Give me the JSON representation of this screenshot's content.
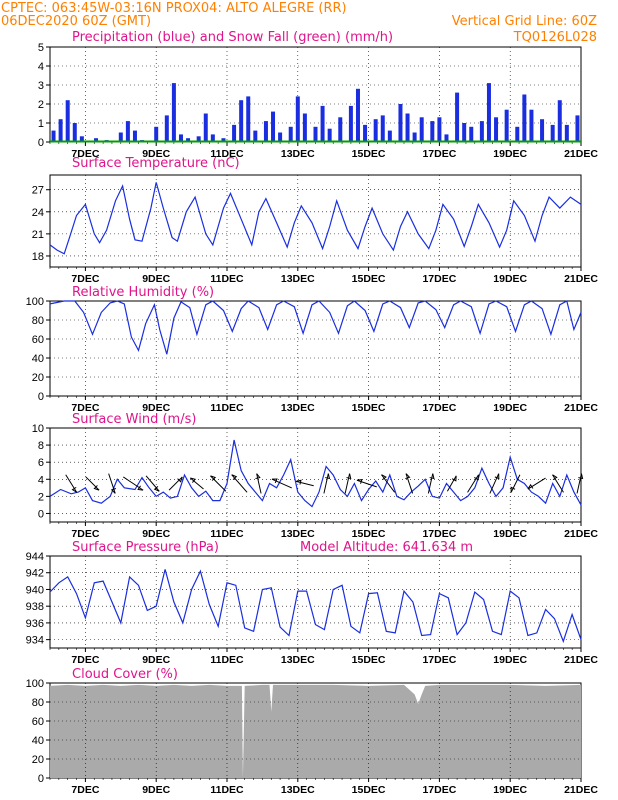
{
  "header": {
    "line1_left": "CPTEC:   063:45W-03:16N   PROX04: ALTO ALEGRE (RR)",
    "line2_left": "06DEC2020 60Z (GMT)",
    "line2_right": "Vertical Grid Line: 60Z",
    "line3_right": "TQ0126L028"
  },
  "colors": {
    "header": "#ff8000",
    "title": "#e0148c",
    "series": "#1a2ee0",
    "snow": "#00a000",
    "cloud": "#aaaaaa",
    "arrow": "#000000"
  },
  "x_axis": {
    "labels": [
      "7DEC",
      "9DEC",
      "11DEC",
      "13DEC",
      "15DEC",
      "17DEC",
      "19DEC",
      "21DEC"
    ],
    "days": [
      7,
      9,
      11,
      13,
      15,
      17,
      19,
      21
    ],
    "range_days": [
      6.0,
      21.0
    ]
  },
  "chart_data": [
    {
      "type": "bar",
      "title": "Precipitation (blue) and Snow Fall (green) (mm/h)",
      "ylim": [
        0,
        5
      ],
      "yticks": [
        "0",
        "1",
        "2",
        "3",
        "4",
        "5"
      ],
      "series": [
        {
          "name": "Precipitation",
          "color": "#1a2ee0",
          "x_days": [
            6.1,
            6.3,
            6.5,
            6.7,
            6.9,
            7.3,
            7.6,
            8.0,
            8.2,
            8.4,
            8.6,
            8.8,
            9.0,
            9.3,
            9.5,
            9.7,
            9.9,
            10.2,
            10.4,
            10.6,
            10.9,
            11.2,
            11.4,
            11.6,
            11.8,
            12.1,
            12.3,
            12.5,
            12.8,
            13.0,
            13.2,
            13.5,
            13.7,
            13.9,
            14.2,
            14.5,
            14.7,
            14.9,
            15.2,
            15.4,
            15.6,
            15.9,
            16.1,
            16.3,
            16.5,
            16.8,
            17.0,
            17.2,
            17.5,
            17.7,
            17.9,
            18.2,
            18.4,
            18.6,
            18.9,
            19.2,
            19.4,
            19.6,
            19.9,
            20.2,
            20.4,
            20.6,
            20.9
          ],
          "values": [
            0.6,
            1.2,
            2.2,
            1.0,
            0.3,
            0.2,
            0.1,
            0.5,
            1.1,
            0.6,
            0.1,
            0.0,
            0.8,
            1.4,
            3.1,
            0.4,
            0.2,
            0.3,
            1.5,
            0.4,
            0.2,
            0.9,
            2.2,
            2.4,
            0.6,
            1.1,
            1.6,
            0.5,
            0.8,
            2.4,
            1.5,
            0.8,
            1.9,
            0.7,
            1.3,
            1.9,
            2.8,
            0.9,
            1.2,
            1.4,
            0.6,
            2.0,
            1.5,
            0.5,
            1.3,
            1.1,
            1.3,
            0.4,
            2.6,
            1.0,
            0.8,
            1.1,
            3.1,
            1.3,
            1.7,
            0.8,
            2.5,
            1.7,
            1.2,
            0.9,
            2.2,
            0.9,
            1.4
          ]
        },
        {
          "name": "Snow Fall",
          "color": "#00a000",
          "values": [
            0
          ]
        }
      ]
    },
    {
      "type": "line",
      "title": "Surface Temperature (nC)",
      "ylim": [
        16.5,
        29
      ],
      "yticks": [
        "18",
        "21",
        "24",
        "27"
      ],
      "series": [
        {
          "name": "Temperature",
          "x_days": [
            6.0,
            6.2,
            6.4,
            6.55,
            6.75,
            7.0,
            7.25,
            7.4,
            7.6,
            7.85,
            8.05,
            8.25,
            8.4,
            8.6,
            8.85,
            9.0,
            9.2,
            9.45,
            9.6,
            9.85,
            10.1,
            10.4,
            10.6,
            10.9,
            11.1,
            11.4,
            11.7,
            11.9,
            12.1,
            12.4,
            12.7,
            12.9,
            13.1,
            13.4,
            13.7,
            13.9,
            14.1,
            14.4,
            14.7,
            14.9,
            15.1,
            15.4,
            15.7,
            15.9,
            16.1,
            16.4,
            16.7,
            16.9,
            17.1,
            17.4,
            17.7,
            17.9,
            18.1,
            18.4,
            18.7,
            18.9,
            19.1,
            19.4,
            19.7,
            19.9,
            20.1,
            20.4,
            20.7,
            21.0
          ],
          "values": [
            19.5,
            18.8,
            18.3,
            20.5,
            23.5,
            25.0,
            21.0,
            19.8,
            21.5,
            25.5,
            27.5,
            23.0,
            20.2,
            20.0,
            24.5,
            28.0,
            24.5,
            20.5,
            20.0,
            24.0,
            26.0,
            21.0,
            19.5,
            24.5,
            26.5,
            23.0,
            19.5,
            24.0,
            25.8,
            22.5,
            19.2,
            22.5,
            24.8,
            22.5,
            19.0,
            22.0,
            25.5,
            21.5,
            19.0,
            22.0,
            24.5,
            21.0,
            18.8,
            22.0,
            24.0,
            21.0,
            19.0,
            21.5,
            25.0,
            23.0,
            19.3,
            22.0,
            25.0,
            22.5,
            19.2,
            21.5,
            25.5,
            23.5,
            20.0,
            23.5,
            26.0,
            24.5,
            26.0,
            25.0
          ]
        }
      ]
    },
    {
      "type": "line",
      "title": "Relative Humidity (%)",
      "ylim": [
        0,
        100
      ],
      "yticks": [
        "0",
        "20",
        "40",
        "60",
        "80",
        "100"
      ],
      "series": [
        {
          "name": "Relative Humidity",
          "x_days": [
            6.0,
            6.4,
            6.7,
            6.95,
            7.2,
            7.45,
            7.7,
            7.9,
            8.1,
            8.3,
            8.5,
            8.7,
            8.95,
            9.1,
            9.3,
            9.5,
            9.7,
            9.95,
            10.15,
            10.4,
            10.6,
            10.9,
            11.15,
            11.4,
            11.6,
            11.9,
            12.15,
            12.4,
            12.6,
            12.9,
            13.15,
            13.4,
            13.6,
            13.9,
            14.15,
            14.4,
            14.6,
            14.9,
            15.15,
            15.4,
            15.6,
            15.9,
            16.15,
            16.4,
            16.6,
            16.9,
            17.15,
            17.4,
            17.6,
            17.9,
            18.15,
            18.4,
            18.6,
            18.9,
            19.15,
            19.4,
            19.6,
            19.9,
            20.15,
            20.4,
            20.6,
            20.8,
            21.0
          ],
          "values": [
            97,
            100,
            100,
            88,
            65,
            88,
            98,
            100,
            97,
            62,
            48,
            76,
            96,
            70,
            44,
            82,
            99,
            93,
            65,
            96,
            100,
            90,
            68,
            92,
            100,
            93,
            70,
            96,
            100,
            94,
            66,
            96,
            100,
            88,
            66,
            95,
            100,
            90,
            68,
            97,
            100,
            93,
            72,
            98,
            100,
            91,
            72,
            96,
            100,
            94,
            66,
            97,
            100,
            94,
            68,
            96,
            100,
            92,
            65,
            96,
            100,
            70,
            88
          ]
        }
      ]
    },
    {
      "type": "line",
      "title": "Surface Wind (m/s)",
      "ylim": [
        -1,
        10
      ],
      "yticks": [
        "0",
        "2",
        "4",
        "6",
        "8",
        "10"
      ],
      "series": [
        {
          "name": "Wind speed",
          "x_days": [
            6.0,
            6.3,
            6.6,
            6.8,
            7.0,
            7.2,
            7.45,
            7.7,
            7.9,
            8.1,
            8.4,
            8.6,
            8.8,
            9.0,
            9.2,
            9.4,
            9.6,
            9.8,
            10.0,
            10.2,
            10.4,
            10.6,
            10.8,
            11.0,
            11.2,
            11.4,
            11.6,
            11.8,
            12.0,
            12.2,
            12.4,
            12.6,
            12.8,
            13.0,
            13.2,
            13.4,
            13.6,
            13.8,
            14.0,
            14.2,
            14.4,
            14.6,
            14.8,
            15.0,
            15.2,
            15.4,
            15.6,
            15.8,
            16.0,
            16.2,
            16.4,
            16.6,
            16.8,
            17.0,
            17.2,
            17.4,
            17.6,
            17.8,
            18.0,
            18.2,
            18.4,
            18.6,
            18.8,
            19.0,
            19.2,
            19.4,
            19.6,
            19.8,
            20.0,
            20.2,
            20.4,
            20.6,
            20.8,
            21.0
          ],
          "values": [
            2.0,
            2.8,
            2.3,
            2.5,
            3.0,
            1.5,
            1.2,
            2.0,
            4.0,
            3.0,
            2.8,
            4.2,
            3.0,
            2.0,
            2.5,
            1.8,
            2.0,
            4.5,
            3.0,
            2.0,
            2.6,
            1.5,
            1.5,
            3.5,
            8.6,
            5.0,
            3.5,
            2.5,
            1.5,
            3.5,
            3.0,
            4.5,
            6.3,
            2.5,
            1.5,
            0.8,
            2.5,
            5.5,
            4.5,
            2.8,
            2.0,
            3.5,
            1.5,
            2.8,
            3.8,
            2.5,
            4.5,
            2.0,
            1.6,
            2.5,
            3.2,
            4.0,
            2.0,
            1.8,
            3.5,
            2.5,
            1.5,
            2.0,
            3.0,
            5.3,
            3.5,
            2.0,
            3.0,
            6.6,
            4.0,
            3.5,
            2.5,
            2.0,
            1.2,
            3.5,
            2.0,
            4.5,
            2.5,
            1.0
          ]
        }
      ],
      "arrows": {
        "x_days": [
          6.6,
          7.2,
          7.75,
          8.35,
          8.9,
          9.55,
          10.15,
          10.75,
          11.35,
          11.9,
          12.55,
          13.2,
          13.8,
          14.4,
          14.95,
          15.55,
          16.15,
          16.75,
          17.35,
          17.95,
          18.55,
          19.15,
          19.75,
          20.35,
          20.95
        ],
        "u": [
          0.5,
          0.6,
          0.3,
          0.9,
          0.6,
          0.6,
          -0.6,
          -0.7,
          -0.7,
          -0.2,
          -0.9,
          -0.8,
          0.2,
          0.2,
          -0.9,
          -0.6,
          -0.3,
          0.2,
          0.4,
          0.5,
          0.4,
          -0.4,
          -0.8,
          -0.5,
          0.2
        ],
        "v": [
          -0.8,
          -0.6,
          -0.9,
          -0.6,
          -0.7,
          0.6,
          0.5,
          0.7,
          0.8,
          0.9,
          0.4,
          0.2,
          0.9,
          0.9,
          0.3,
          0.8,
          0.9,
          0.9,
          0.7,
          0.8,
          0.9,
          -0.8,
          -0.5,
          0.8,
          0.9
        ]
      }
    },
    {
      "type": "line",
      "title": "Surface Pressure (hPa)",
      "annotation": "Model Altitude: 641.634 m",
      "ylim": [
        933,
        944
      ],
      "yticks": [
        "934",
        "936",
        "938",
        "940",
        "942",
        "944"
      ],
      "series": [
        {
          "name": "Surface Pressure",
          "x_days": [
            6.0,
            6.25,
            6.5,
            6.75,
            7.0,
            7.25,
            7.5,
            7.75,
            8.0,
            8.25,
            8.5,
            8.75,
            9.0,
            9.25,
            9.5,
            9.75,
            10.0,
            10.25,
            10.5,
            10.75,
            11.0,
            11.25,
            11.5,
            11.75,
            12.0,
            12.25,
            12.5,
            12.75,
            13.0,
            13.25,
            13.5,
            13.75,
            14.0,
            14.25,
            14.5,
            14.75,
            15.0,
            15.25,
            15.5,
            15.75,
            16.0,
            16.25,
            16.5,
            16.75,
            17.0,
            17.25,
            17.5,
            17.75,
            18.0,
            18.25,
            18.5,
            18.75,
            19.0,
            19.25,
            19.5,
            19.75,
            20.0,
            20.25,
            20.5,
            20.75,
            21.0
          ],
          "values": [
            939.7,
            940.8,
            941.5,
            939.5,
            936.6,
            940.8,
            941.0,
            938.5,
            936.0,
            941.5,
            940.5,
            937.5,
            938.0,
            942.4,
            938.5,
            936.0,
            940.0,
            942.2,
            938.2,
            935.6,
            940.8,
            940.5,
            935.4,
            935.0,
            940.0,
            940.2,
            935.5,
            934.5,
            939.8,
            939.8,
            935.8,
            935.2,
            940.0,
            940.5,
            935.6,
            934.8,
            939.5,
            939.6,
            935.0,
            934.8,
            939.8,
            938.5,
            934.5,
            934.6,
            939.5,
            939.0,
            934.6,
            936.0,
            939.7,
            938.8,
            935.0,
            934.6,
            939.8,
            939.0,
            934.5,
            934.8,
            937.6,
            936.5,
            933.8,
            937.0,
            934.0
          ]
        }
      ]
    },
    {
      "type": "area",
      "title": "Cloud Cover (%)",
      "ylim": [
        0,
        100
      ],
      "yticks": [
        "0",
        "20",
        "40",
        "60",
        "80",
        "100"
      ],
      "series": [
        {
          "name": "Cloud Cover",
          "color": "#aaaaaa",
          "x_days": [
            6.0,
            6.5,
            7.0,
            7.5,
            8.0,
            8.5,
            9.0,
            9.5,
            10.0,
            10.5,
            11.0,
            11.42,
            11.45,
            11.5,
            12.0,
            12.2,
            12.25,
            12.3,
            13.0,
            14.0,
            15.0,
            16.0,
            16.3,
            16.4,
            16.5,
            16.6,
            17.0,
            18.0,
            19.0,
            20.0,
            21.0
          ],
          "values": [
            97,
            98,
            97,
            98,
            97,
            98,
            97,
            98,
            97,
            98,
            97,
            97,
            0,
            97,
            98,
            98,
            70,
            98,
            98,
            98,
            97,
            98,
            88,
            78,
            88,
            97,
            98,
            98,
            98,
            97,
            98
          ]
        }
      ]
    }
  ]
}
